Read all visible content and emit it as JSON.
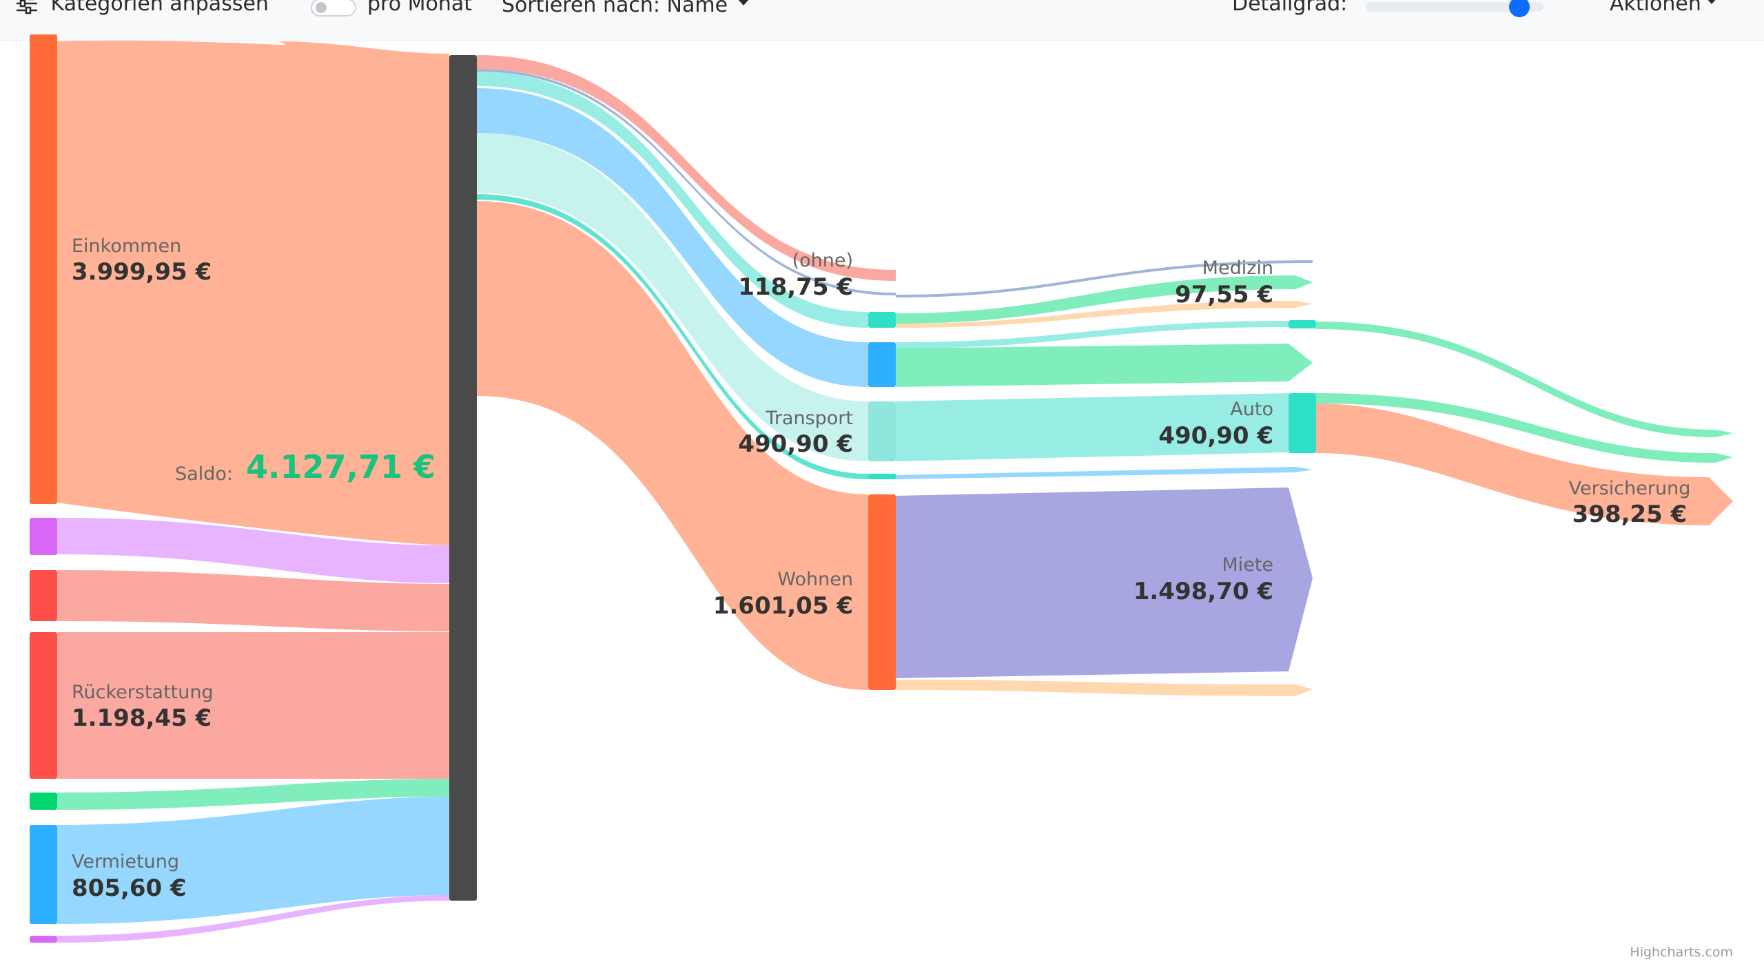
{
  "toolbar": {
    "customize_label": "Kategorien anpassen",
    "per_month_label": "pro Monat",
    "sort_label": "Sortieren nach: Name",
    "detail_label": "Detailgrad:",
    "actions_label": "Aktionen",
    "per_month_on": false,
    "detail_level": 0.9
  },
  "chart_data": {
    "type": "sankey",
    "saldo_label": "Saldo:",
    "saldo_value": "4.127,71 €",
    "nodes": [
      {
        "id": "einkommen",
        "name": "Einkommen",
        "value": "3.999,95 €",
        "color": "#ff6c3a"
      },
      {
        "id": "rueckerstattung",
        "name": "Rückerstattung",
        "value": "1.198,45 €",
        "color": "#ff4f4a"
      },
      {
        "id": "vermietung",
        "name": "Vermietung",
        "value": "805,60 €",
        "color": "#2eafff"
      },
      {
        "id": "ohne",
        "name": "(ohne)",
        "value": "118,75 €",
        "color": "#ff9b9b"
      },
      {
        "id": "transport",
        "name": "Transport",
        "value": "490,90 €",
        "color": "#8fe6dc"
      },
      {
        "id": "wohnen",
        "name": "Wohnen",
        "value": "1.601,05 €",
        "color": "#ff6c3a"
      },
      {
        "id": "medizin",
        "name": "Medizin",
        "value": "97,55 €",
        "color": "#7ef0b8"
      },
      {
        "id": "auto",
        "name": "Auto",
        "value": "490,90 €",
        "color": "#2ee0c8"
      },
      {
        "id": "miete",
        "name": "Miete",
        "value": "1.498,70 €",
        "color": "#a8a6e0"
      },
      {
        "id": "versicherung",
        "name": "Versicherung",
        "value": "398,25 €",
        "color": "#ffb296"
      }
    ],
    "credit": "Highcharts.com"
  }
}
